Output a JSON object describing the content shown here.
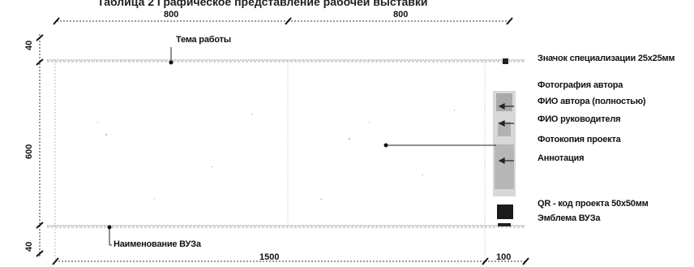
{
  "title": "Таблица 2 Графическое представление рабочей выставки",
  "dimensions": {
    "top_left": "800",
    "top_right": "800",
    "bottom_main": "1500",
    "bottom_side": "100",
    "left_top": "40",
    "left_middle": "600",
    "left_bottom": "40"
  },
  "labels": {
    "topic": "Тема работы",
    "university_name": "Наименование ВУЗа",
    "spec_badge": "Значок специализации 25х25мм",
    "author_photo": "Фотография автора",
    "author_name": "ФИО автора (полностью)",
    "supervisor_name": "ФИО руководителя",
    "project_photo": "Фотокопия проекта",
    "annotation": "Аннотация",
    "qr_code": "QR - код проекта 50х50мм",
    "university_emblem": "Эмблема ВУЗа"
  }
}
